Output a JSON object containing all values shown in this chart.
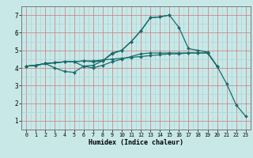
{
  "xlabel": "Humidex (Indice chaleur)",
  "xlim": [
    -0.5,
    23.5
  ],
  "ylim": [
    0.8,
    7.4
  ],
  "xticks": [
    0,
    1,
    2,
    3,
    4,
    5,
    6,
    7,
    8,
    9,
    10,
    11,
    12,
    13,
    14,
    15,
    16,
    17,
    18,
    19,
    20,
    21,
    22,
    23
  ],
  "yticks": [
    1,
    2,
    3,
    4,
    5,
    6,
    7
  ],
  "bg_color": "#c8e8e8",
  "line_color": "#1a6b6b",
  "grid_major_color": "#cc7777",
  "grid_minor_color": "#a8d8d8",
  "lines": [
    {
      "x": [
        0,
        1,
        2,
        3,
        4,
        5,
        6,
        7,
        8,
        9,
        10,
        11,
        12,
        13,
        14,
        15,
        16,
        17,
        18,
        19,
        20
      ],
      "y": [
        4.1,
        4.15,
        4.25,
        4.3,
        4.35,
        4.35,
        4.4,
        4.4,
        4.45,
        4.5,
        4.55,
        4.6,
        4.65,
        4.7,
        4.75,
        4.8,
        4.8,
        4.85,
        4.85,
        4.85,
        4.1
      ]
    },
    {
      "x": [
        0,
        1,
        2,
        3,
        4,
        5,
        6,
        7,
        8,
        9,
        10,
        11,
        12,
        13,
        14,
        15,
        16,
        17,
        18,
        19,
        20,
        21,
        22,
        23
      ],
      "y": [
        4.1,
        4.15,
        4.25,
        4.0,
        3.8,
        3.75,
        4.1,
        4.15,
        4.4,
        4.85,
        5.0,
        5.5,
        6.1,
        6.85,
        6.9,
        7.0,
        6.3,
        5.1,
        5.0,
        4.9,
        4.1,
        3.1,
        1.9,
        1.25
      ]
    },
    {
      "x": [
        0,
        1,
        2,
        3,
        4,
        5,
        6,
        7,
        8,
        9,
        10,
        11,
        12,
        13,
        14,
        15,
        16,
        17,
        18,
        19,
        20
      ],
      "y": [
        4.1,
        4.15,
        4.25,
        4.3,
        4.35,
        4.35,
        4.1,
        4.0,
        4.15,
        4.35,
        4.5,
        4.65,
        4.8,
        4.85,
        4.85,
        4.85,
        4.85,
        4.85,
        4.85,
        4.85,
        4.1
      ]
    },
    {
      "x": [
        0,
        1,
        2,
        3,
        4,
        5,
        6,
        7,
        8,
        9,
        10,
        11,
        12,
        13,
        14,
        15
      ],
      "y": [
        4.1,
        4.15,
        4.25,
        4.3,
        4.35,
        4.35,
        4.4,
        4.35,
        4.4,
        4.8,
        5.0,
        5.5,
        6.1,
        6.85,
        6.9,
        7.0
      ]
    }
  ]
}
